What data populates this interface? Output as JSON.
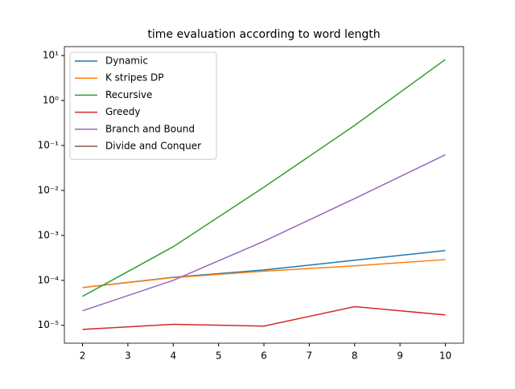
{
  "chart_data": {
    "type": "line",
    "title": "time evaluation according to word length",
    "x": [
      2,
      4,
      6,
      8,
      10
    ],
    "series": [
      {
        "name": "Dynamic",
        "color": "#1f77b4",
        "values": [
          6.9e-05,
          0.000117,
          0.00017,
          0.00028,
          0.00046
        ]
      },
      {
        "name": "K stripes DP",
        "color": "#ff7f0e",
        "values": [
          6.9e-05,
          0.000115,
          0.00016,
          0.00021,
          0.00029
        ]
      },
      {
        "name": "Recursive",
        "color": "#2ca02c",
        "values": [
          4.4e-05,
          0.00056,
          0.0118,
          0.28,
          8.2
        ]
      },
      {
        "name": "Greedy",
        "color": "#d62728",
        "values": [
          8.1e-06,
          1.05e-05,
          9.6e-06,
          2.6e-05,
          1.7e-05
        ]
      },
      {
        "name": "Branch and Bound",
        "color": "#9467bd",
        "values": [
          2.1e-05,
          0.0001,
          0.00074,
          0.0066,
          0.062
        ]
      },
      {
        "name": "Divide and Conquer",
        "color": "#8c564b",
        "values": [
          null,
          null,
          null,
          null,
          null
        ]
      }
    ],
    "xlim": [
      1.6,
      10.4
    ],
    "xticks": [
      2,
      3,
      4,
      5,
      6,
      7,
      8,
      9,
      10
    ],
    "ylim": [
      4e-06,
      15.8
    ],
    "log_y": true,
    "yticks": [
      {
        "value": 1e-05,
        "label": "10⁻⁵"
      },
      {
        "value": 0.0001,
        "label": "10⁻⁴"
      },
      {
        "value": 0.001,
        "label": "10⁻³"
      },
      {
        "value": 0.01,
        "label": "10⁻²"
      },
      {
        "value": 0.1,
        "label": "10⁻¹"
      },
      {
        "value": 1,
        "label": "10⁰"
      },
      {
        "value": 10,
        "label": "10¹"
      }
    ],
    "legend": "upper left"
  }
}
